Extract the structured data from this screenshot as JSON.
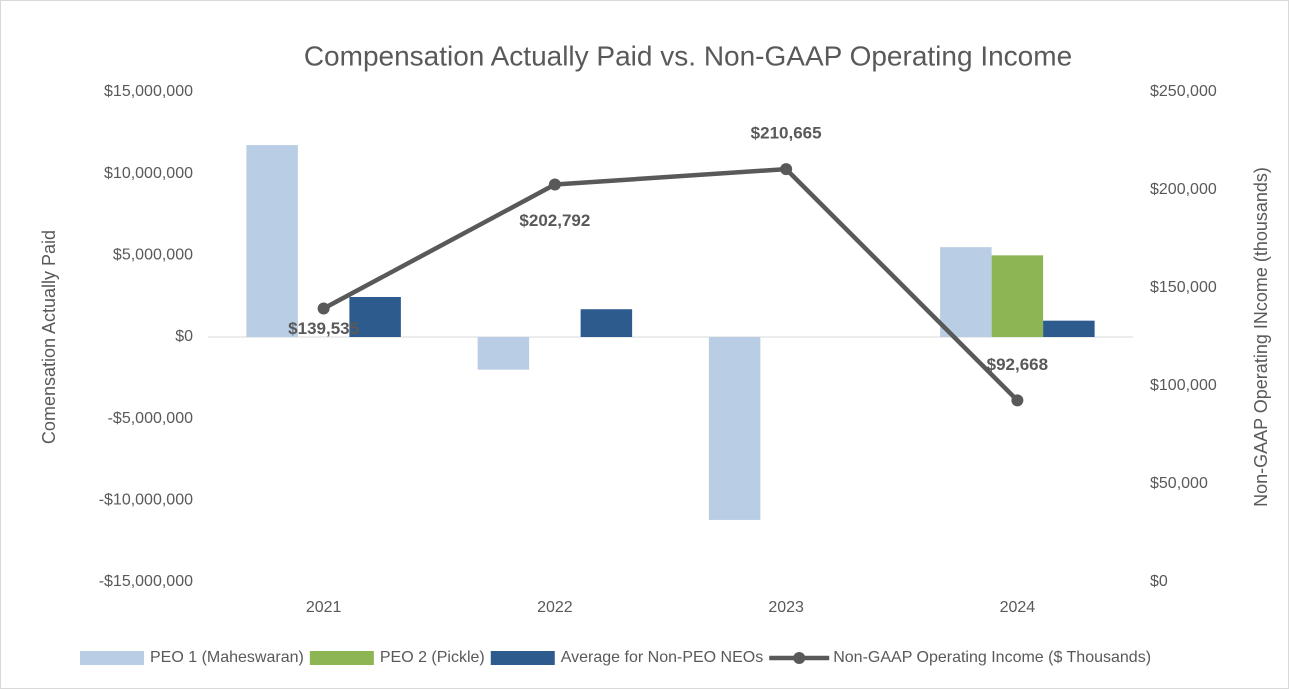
{
  "chart_data": {
    "type": "bar",
    "title": "Compensation Actually Paid vs. Non-GAAP Operating Income",
    "ylabel": "Comensation Actually Paid",
    "y2label": "Non-GAAP Operating INcome (thousands)",
    "categories": [
      "2021",
      "2022",
      "2023",
      "2024"
    ],
    "series": [
      {
        "name": "PEO 1 (Maheswaran)",
        "type": "bar",
        "color": "#b9cde5",
        "values": [
          11750000,
          -2000000,
          -11200000,
          5500000
        ]
      },
      {
        "name": "PEO 2 (Pickle)",
        "type": "bar",
        "color": "#8db554",
        "values": [
          null,
          null,
          null,
          5000000
        ]
      },
      {
        "name": "Average for Non-PEO NEOs",
        "type": "bar",
        "color": "#2e5b8e",
        "values": [
          2450000,
          1700000,
          null,
          1000000
        ]
      },
      {
        "name": "Non-GAAP Operating Income ($ Thousands)",
        "type": "line",
        "axis": "y2",
        "color": "#595959",
        "values": [
          139535,
          202792,
          210665,
          92668
        ],
        "value_labels": [
          "$139,535",
          "$202,792",
          "$210,665",
          "$92,668"
        ]
      }
    ],
    "ylim": [
      -15000000,
      15000000
    ],
    "yticks": [
      {
        "value": -15000000,
        "label": "-$15,000,000"
      },
      {
        "value": -10000000,
        "label": "-$10,000,000"
      },
      {
        "value": -5000000,
        "label": "-$5,000,000"
      },
      {
        "value": 0,
        "label": "$0"
      },
      {
        "value": 5000000,
        "label": "$5,000,000"
      },
      {
        "value": 10000000,
        "label": "$10,000,000"
      },
      {
        "value": 15000000,
        "label": "$15,000,000"
      }
    ],
    "y2lim": [
      0,
      250000
    ],
    "y2ticks": [
      {
        "value": 0,
        "label": "$0"
      },
      {
        "value": 50000,
        "label": "$50,000"
      },
      {
        "value": 100000,
        "label": "$100,000"
      },
      {
        "value": 150000,
        "label": "$150,000"
      },
      {
        "value": 200000,
        "label": "$200,000"
      },
      {
        "value": 250000,
        "label": "$250,000"
      }
    ],
    "grid": false,
    "legend": "bottom"
  }
}
